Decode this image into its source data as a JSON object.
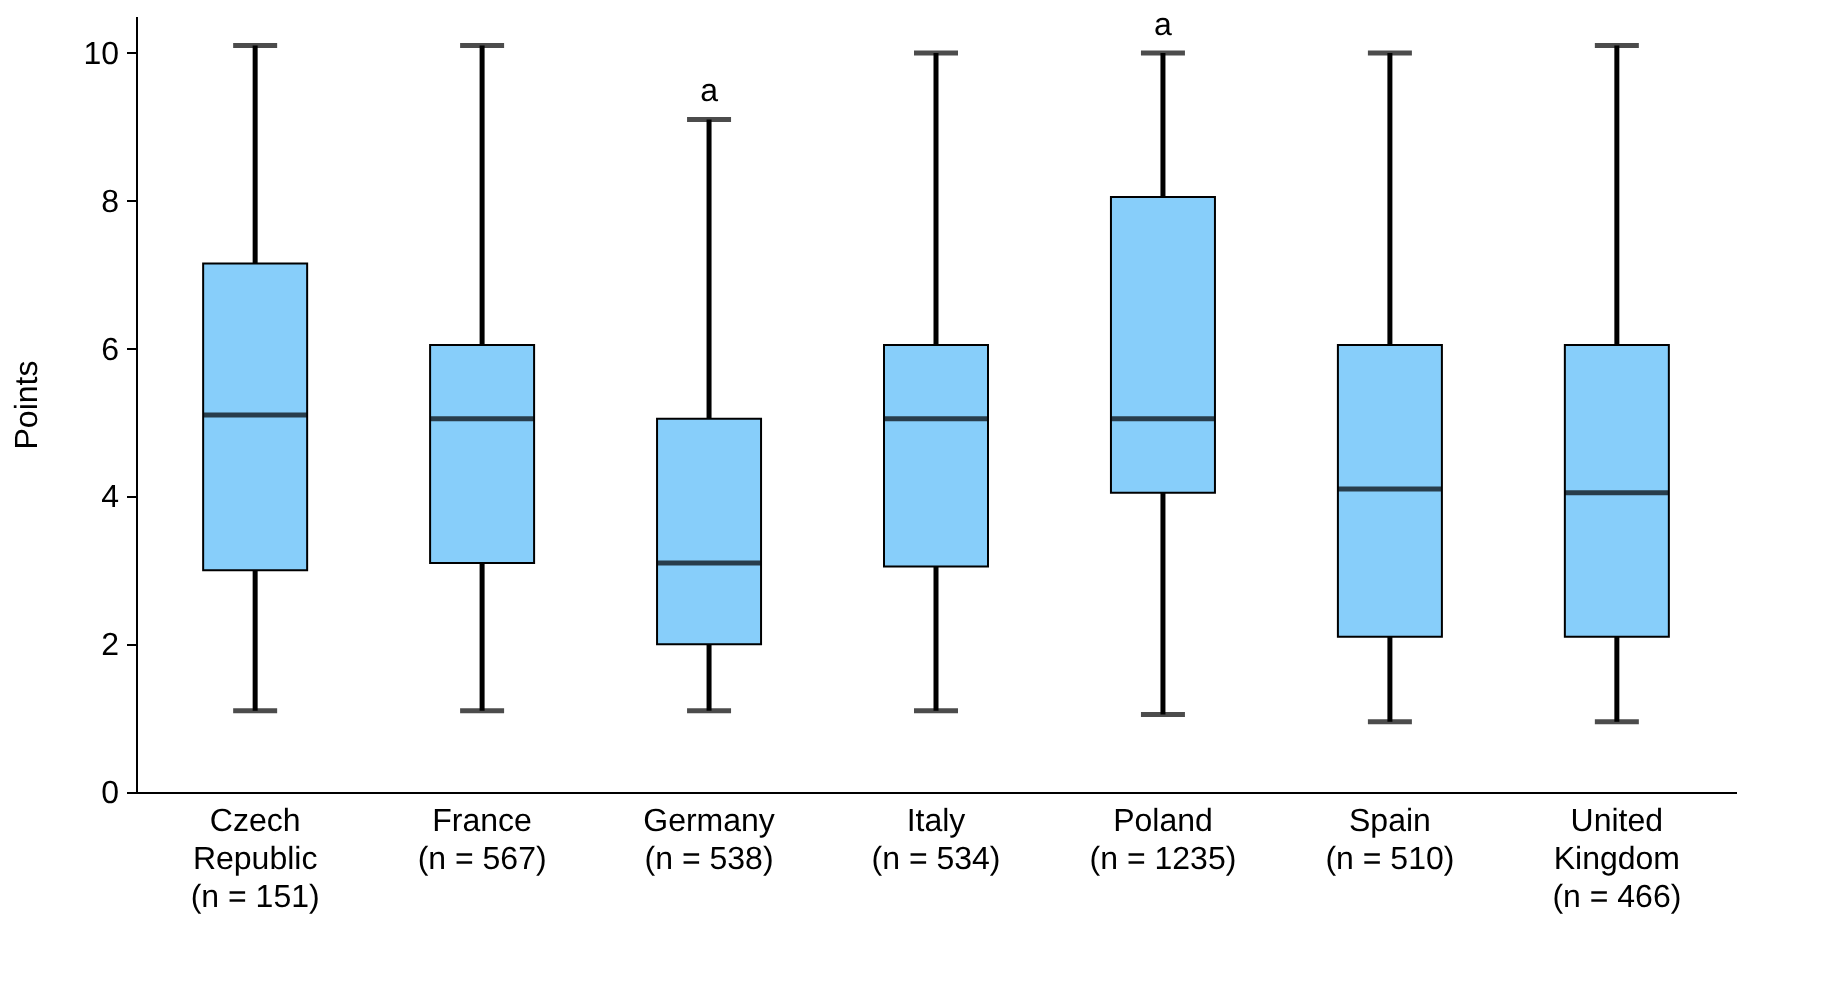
{
  "chart_data": {
    "type": "box",
    "ylabel": "Points",
    "categories": [
      "Czech\nRepublic\n(n = 151)",
      "France\n(n = 567)",
      "Germany\n(n = 538)",
      "Italy\n(n = 534)",
      "Poland\n(n = 1235)",
      "Spain\n(n = 510)",
      "United\nKingdom\n(n = 466)"
    ],
    "boxes": [
      {
        "low": 1.1,
        "q1": 3.0,
        "median": 5.1,
        "q3": 7.15,
        "high": 10.1
      },
      {
        "low": 1.1,
        "q1": 3.1,
        "median": 5.05,
        "q3": 6.05,
        "high": 10.1
      },
      {
        "low": 1.1,
        "q1": 2.0,
        "median": 3.1,
        "q3": 5.05,
        "high": 9.1
      },
      {
        "low": 1.1,
        "q1": 3.05,
        "median": 5.05,
        "q3": 6.05,
        "high": 10.0
      },
      {
        "low": 1.05,
        "q1": 4.05,
        "median": 5.05,
        "q3": 8.05,
        "high": 10.0
      },
      {
        "low": 0.95,
        "q1": 2.1,
        "median": 4.1,
        "q3": 6.05,
        "high": 10.0
      },
      {
        "low": 0.95,
        "q1": 2.1,
        "median": 4.05,
        "q3": 6.05,
        "high": 10.1
      }
    ],
    "color": "#87cefa",
    "ylim": [
      0,
      10.5
    ],
    "yticks": [
      0,
      2,
      4,
      6,
      8,
      10
    ],
    "annotations": [
      {
        "text": "a",
        "x": "Germany\n(n = 538)",
        "y": 9.1
      },
      {
        "text": "a",
        "x": "Poland\n(n = 1235)",
        "y": 10.0
      }
    ]
  }
}
